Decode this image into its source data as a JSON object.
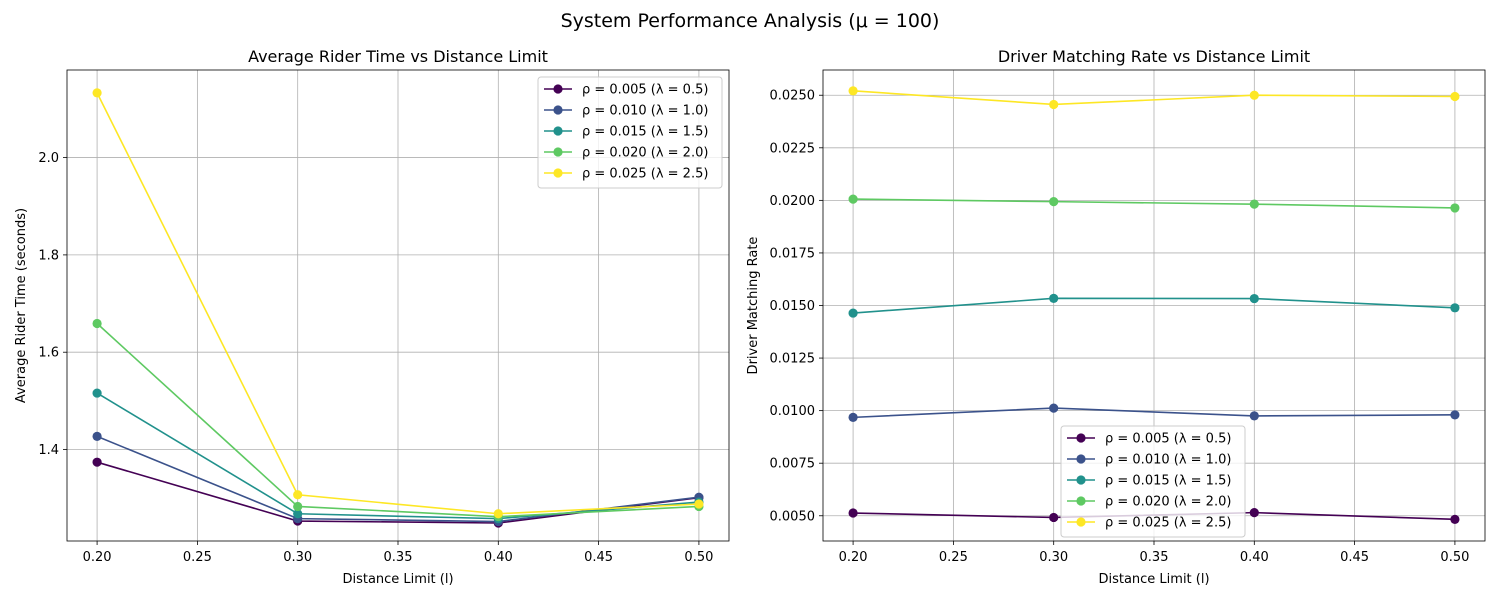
{
  "suptitle": "System Performance Analysis (μ = 100)",
  "colors": {
    "series": [
      "#440154",
      "#3b528b",
      "#21918c",
      "#5ec962",
      "#fde725"
    ]
  },
  "chart_data": [
    {
      "type": "line",
      "title": "Average Rider Time vs Distance Limit",
      "xlabel": "Distance Limit (l)",
      "ylabel": "Average Rider Time (seconds)",
      "x": [
        0.2,
        0.3,
        0.4,
        0.5
      ],
      "xlim": [
        0.185,
        0.515
      ],
      "ylim": [
        1.212,
        2.18
      ],
      "xticks": [
        "0.20",
        "0.25",
        "0.30",
        "0.35",
        "0.40",
        "0.45",
        "0.50"
      ],
      "xtick_values": [
        0.2,
        0.25,
        0.3,
        0.35,
        0.4,
        0.45,
        0.5
      ],
      "yticks": [
        "1.4",
        "1.6",
        "1.8",
        "2.0"
      ],
      "ytick_values": [
        1.4,
        1.6,
        1.8,
        2.0
      ],
      "grid": true,
      "legend_position": "top-right",
      "series": [
        {
          "name": "ρ = 0.005 (λ = 0.5)",
          "values": [
            1.374,
            1.253,
            1.249,
            1.301
          ]
        },
        {
          "name": "ρ = 0.010 (λ = 1.0)",
          "values": [
            1.427,
            1.258,
            1.252,
            1.302
          ]
        },
        {
          "name": "ρ = 0.015 (λ = 1.5)",
          "values": [
            1.516,
            1.268,
            1.258,
            1.292
          ]
        },
        {
          "name": "ρ = 0.020 (λ = 2.0)",
          "values": [
            1.659,
            1.283,
            1.262,
            1.283
          ]
        },
        {
          "name": "ρ = 0.025 (λ = 2.5)",
          "values": [
            2.133,
            1.307,
            1.268,
            1.288
          ]
        }
      ]
    },
    {
      "type": "line",
      "title": "Driver Matching Rate vs Distance Limit",
      "xlabel": "Distance Limit (l)",
      "ylabel": "Driver Matching Rate",
      "x": [
        0.2,
        0.3,
        0.4,
        0.5
      ],
      "xlim": [
        0.185,
        0.515
      ],
      "ylim": [
        0.0038,
        0.0262
      ],
      "xticks": [
        "0.20",
        "0.25",
        "0.30",
        "0.35",
        "0.40",
        "0.45",
        "0.50"
      ],
      "xtick_values": [
        0.2,
        0.25,
        0.3,
        0.35,
        0.4,
        0.45,
        0.5
      ],
      "yticks": [
        "0.0050",
        "0.0075",
        "0.0100",
        "0.0125",
        "0.0150",
        "0.0175",
        "0.0200",
        "0.0225",
        "0.0250"
      ],
      "ytick_values": [
        0.005,
        0.0075,
        0.01,
        0.0125,
        0.015,
        0.0175,
        0.02,
        0.0225,
        0.025
      ],
      "grid": true,
      "legend_position": "lower-center",
      "series": [
        {
          "name": "ρ = 0.005 (λ = 0.5)",
          "values": [
            0.00513,
            0.00492,
            0.00515,
            0.00483
          ]
        },
        {
          "name": "ρ = 0.010 (λ = 1.0)",
          "values": [
            0.00968,
            0.01012,
            0.00975,
            0.0098
          ]
        },
        {
          "name": "ρ = 0.015 (λ = 1.5)",
          "values": [
            0.01464,
            0.01534,
            0.01533,
            0.01489
          ]
        },
        {
          "name": "ρ = 0.020 (λ = 2.0)",
          "values": [
            0.02006,
            0.01994,
            0.01982,
            0.01964
          ]
        },
        {
          "name": "ρ = 0.025 (λ = 2.5)",
          "values": [
            0.02521,
            0.02456,
            0.025,
            0.02494
          ]
        }
      ]
    }
  ]
}
